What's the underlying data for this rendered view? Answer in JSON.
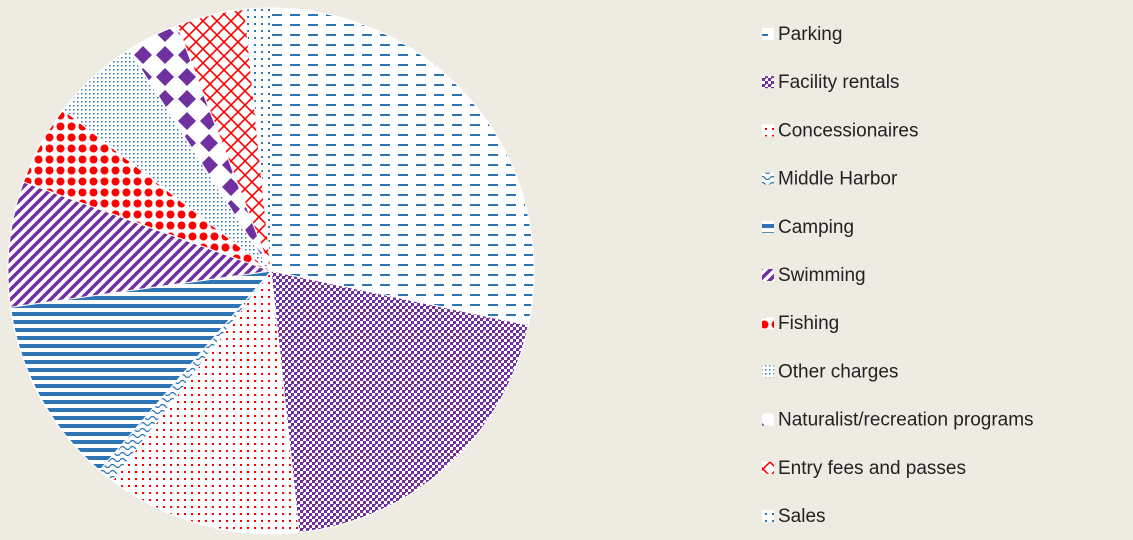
{
  "chart_data": {
    "type": "pie",
    "categories": [
      "Parking",
      "Facility rentals",
      "Concessionaires",
      "Middle Harbor",
      "Camping",
      "Swimming",
      "Fishing",
      "Other charges",
      "Naturalist/recreation programs",
      "Entry fees and passes",
      "Sales"
    ],
    "values": [
      28.3,
      20,
      12,
      1,
      11.5,
      7.7,
      5,
      5.4,
      3.3,
      4.2,
      1.6
    ],
    "colors": [
      "#2e75b6",
      "#7030a0",
      "#ff0000",
      "#2e75b6",
      "#2e75b6",
      "#7030a0",
      "#ff0000",
      "#2e75b6",
      "#7030a0",
      "#ff0000",
      "#2e75b6"
    ],
    "legend": "right"
  }
}
